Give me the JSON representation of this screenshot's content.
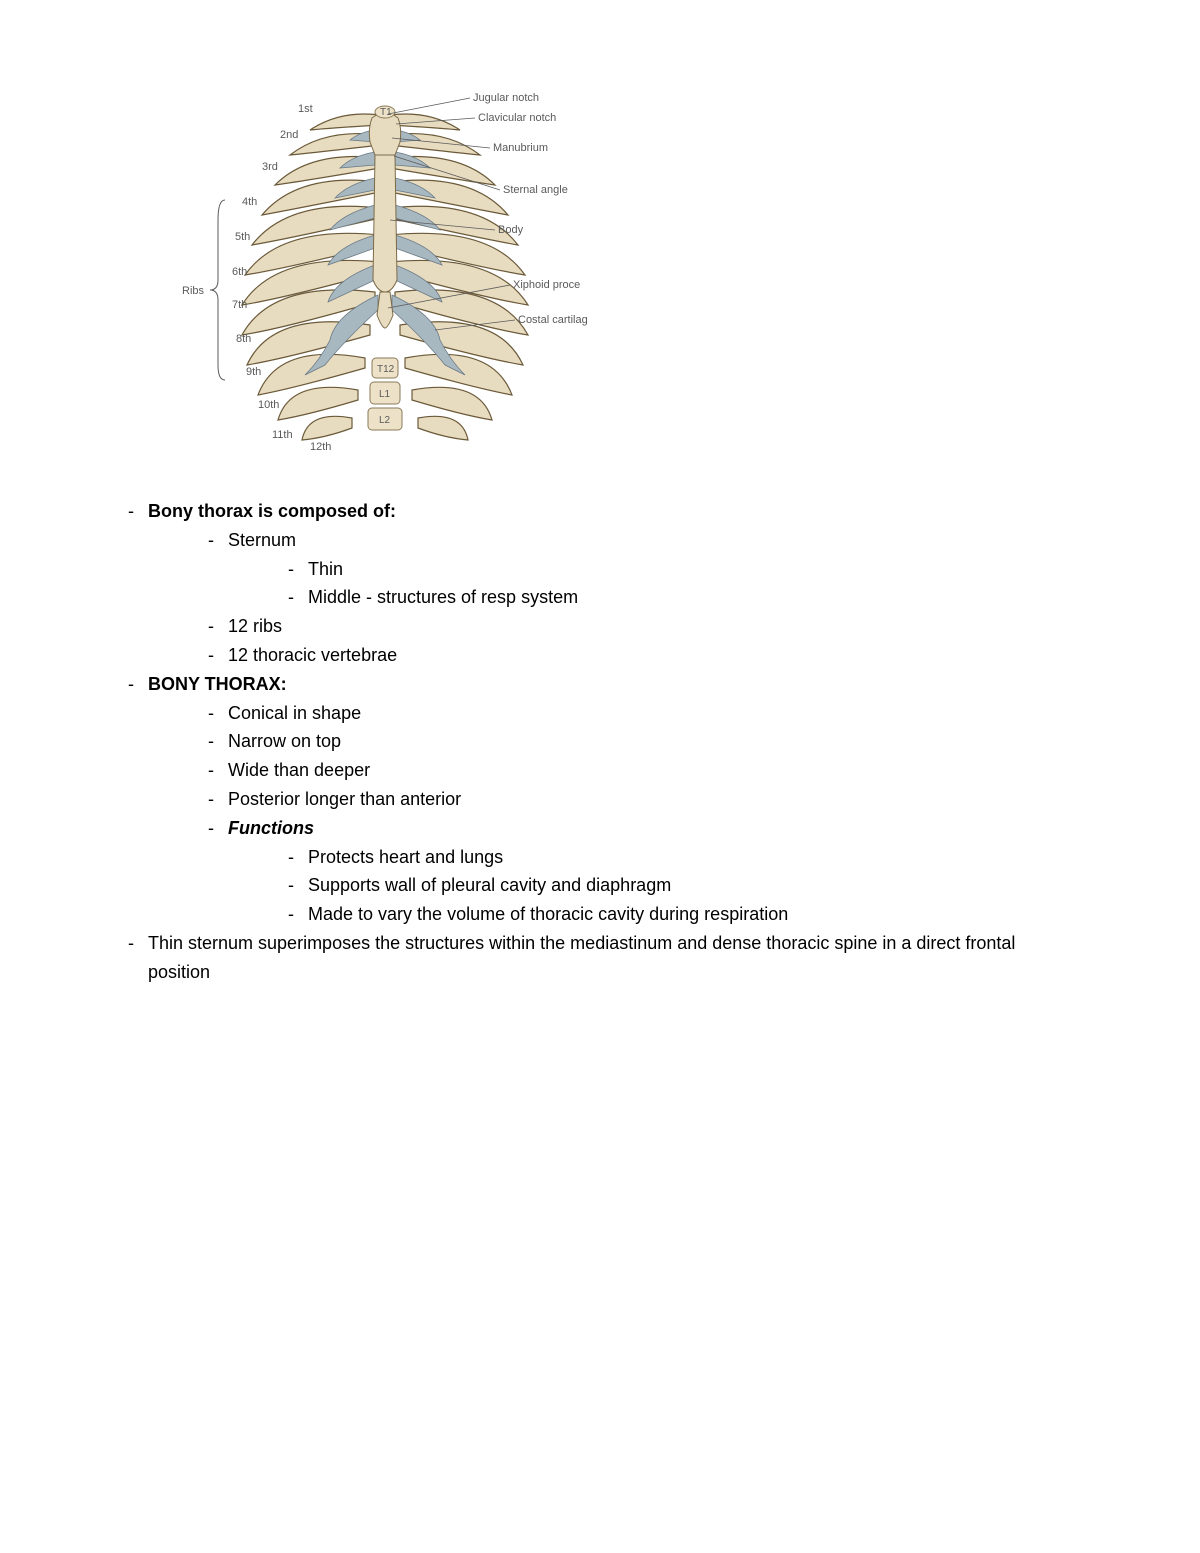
{
  "diagram": {
    "rib_labels": [
      "1st",
      "2nd",
      "3rd",
      "4th",
      "5th",
      "6th",
      "7th",
      "8th",
      "9th",
      "10th",
      "11th",
      "12th"
    ],
    "ribs_group_label": "Ribs",
    "right_labels": [
      "Jugular notch",
      "Clavicular notch",
      "Manubrium",
      "Sternal angle",
      "Body",
      "Xiphoid proce",
      "Costal cartilag"
    ],
    "vertebra_labels": [
      "T1",
      "T12",
      "L1",
      "L2"
    ],
    "colors": {
      "bone": "#e8dcc0",
      "bone_stroke": "#7a6a48",
      "cartilage": "#a8b8c0",
      "cartilage_stroke": "#6b7a85",
      "label": "#5a5a5a"
    }
  },
  "outline": [
    {
      "level": 0,
      "bold": true,
      "italic": false,
      "text": "Bony thorax is composed of:"
    },
    {
      "level": 1,
      "bold": false,
      "italic": false,
      "text": "Sternum"
    },
    {
      "level": 2,
      "bold": false,
      "italic": false,
      "text": "Thin"
    },
    {
      "level": 2,
      "bold": false,
      "italic": false,
      "text": "Middle - structures of resp system"
    },
    {
      "level": 1,
      "bold": false,
      "italic": false,
      "text": "12 ribs"
    },
    {
      "level": 1,
      "bold": false,
      "italic": false,
      "text": "12 thoracic vertebrae"
    },
    {
      "level": 0,
      "bold": true,
      "italic": false,
      "text": "BONY THORAX:"
    },
    {
      "level": 1,
      "bold": false,
      "italic": false,
      "text": "Conical in shape"
    },
    {
      "level": 1,
      "bold": false,
      "italic": false,
      "text": "Narrow on top"
    },
    {
      "level": 1,
      "bold": false,
      "italic": false,
      "text": "Wide than deeper"
    },
    {
      "level": 1,
      "bold": false,
      "italic": false,
      "text": "Posterior longer than anterior"
    },
    {
      "level": 1,
      "bold": true,
      "italic": true,
      "text": "Functions"
    },
    {
      "level": 3,
      "bold": false,
      "italic": false,
      "text": "Protects heart and lungs"
    },
    {
      "level": 3,
      "bold": false,
      "italic": false,
      "text": "Supports wall of pleural cavity and diaphragm"
    },
    {
      "level": 3,
      "bold": false,
      "italic": false,
      "text": "Made to vary the volume of thoracic cavity during respiration"
    },
    {
      "level": 0,
      "bold": false,
      "italic": false,
      "text": "Thin sternum superimposes the structures within the mediastinum and dense thoracic spine in a  direct frontal position"
    }
  ]
}
